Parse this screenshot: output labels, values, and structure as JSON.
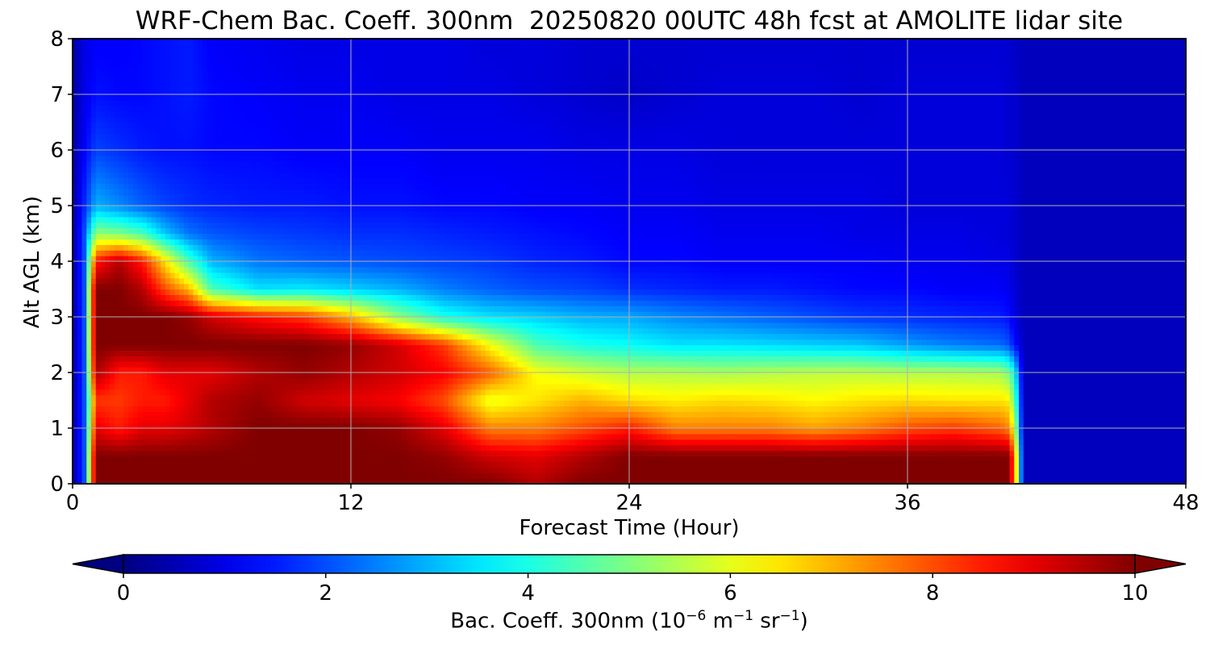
{
  "chart_data": {
    "type": "heatmap",
    "title": "WRF-Chem Bac. Coeff. 300nm  20250820 00UTC 48h fcst at AMOLITE lidar site",
    "xlabel": "Forecast Time (Hour)",
    "ylabel": "Alt AGL (km)",
    "xlim": [
      0,
      48
    ],
    "ylim": [
      0,
      8
    ],
    "xticks": [
      "0",
      "12",
      "24",
      "36",
      "48"
    ],
    "yticks": [
      "0",
      "1",
      "2",
      "3",
      "4",
      "5",
      "6",
      "7",
      "8"
    ],
    "grid": true,
    "colormap": "jet",
    "colorbar": {
      "label": "Bac. Coeff. 300nm  (10-6 m-1 sr-1)",
      "label_parts": {
        "base": "Bac. Coeff. 300nm  (10",
        "exp1": "−6",
        "mid": " m",
        "exp2": "−1",
        "mid2": " sr",
        "exp3": "−1",
        "end": ")"
      },
      "min": 0,
      "max": 10,
      "ticks": [
        "0",
        "2",
        "4",
        "6",
        "8",
        "10"
      ],
      "extend": "both",
      "orientation": "horizontal"
    },
    "x": [
      0,
      0.5,
      1,
      2,
      3,
      4,
      5,
      6,
      8,
      10,
      12,
      14,
      16,
      18,
      20,
      22,
      24,
      26,
      28,
      30,
      32,
      34,
      36,
      38,
      40,
      40.3,
      40.6,
      41,
      44,
      48
    ],
    "y": [
      0,
      0.5,
      1,
      1.5,
      2,
      2.5,
      3,
      3.5,
      4,
      4.5,
      5,
      6,
      7,
      8
    ],
    "z": [
      [
        0.3,
        2,
        10,
        10,
        10,
        10,
        10,
        10,
        10,
        10,
        10,
        10,
        10,
        10,
        9.5,
        10,
        10,
        10,
        10,
        10,
        10,
        10,
        10,
        10,
        10,
        10,
        8,
        0.6,
        0.6,
        0.6
      ],
      [
        0.3,
        2,
        10,
        10,
        10,
        10,
        10,
        10,
        10,
        10,
        10,
        10,
        9.8,
        9.2,
        9,
        9.5,
        10,
        10,
        10,
        10,
        10,
        10,
        10,
        10,
        10,
        10,
        8,
        0.6,
        0.6,
        0.6
      ],
      [
        0.3,
        2,
        9,
        8.5,
        9,
        9,
        9.2,
        9.5,
        10,
        10,
        10,
        9.8,
        9,
        7.5,
        7.5,
        8,
        8.5,
        7.5,
        7.5,
        7.5,
        7.2,
        7.5,
        8,
        8.2,
        7.8,
        7.5,
        6.2,
        0.6,
        0.6,
        0.6
      ],
      [
        0.3,
        2,
        8.2,
        8.2,
        8.5,
        8.5,
        9,
        9.5,
        9.8,
        9.2,
        9,
        8.8,
        8,
        6,
        6.5,
        7,
        6.6,
        6.4,
        6.6,
        6.5,
        6.3,
        6.5,
        6.6,
        6.5,
        6.5,
        6.4,
        5,
        0.6,
        0.6,
        0.6
      ],
      [
        0.3,
        2,
        9.6,
        8.5,
        8.5,
        9,
        9,
        9,
        9.5,
        9.8,
        9.5,
        9.2,
        8.8,
        7.8,
        6.2,
        5.8,
        5.5,
        5.5,
        5.4,
        5.5,
        5.6,
        5.6,
        5.5,
        5.5,
        5.4,
        5,
        4,
        0.6,
        0.6,
        0.6
      ],
      [
        0.3,
        2,
        10,
        10,
        10,
        10,
        10,
        10,
        10,
        10,
        9.8,
        9.2,
        8.2,
        6.2,
        4.5,
        4,
        3.8,
        3.5,
        3.5,
        3.4,
        3.3,
        3.2,
        2.8,
        2.5,
        2.3,
        2.1,
        1.5,
        0.6,
        0.6,
        0.6
      ],
      [
        0.3,
        2,
        10,
        10,
        10,
        10,
        9.8,
        9.2,
        8.6,
        8.2,
        7,
        5.2,
        4,
        3.5,
        3.3,
        3,
        2.9,
        2.6,
        2.4,
        2.2,
        2,
        1.8,
        1.7,
        1.6,
        1.5,
        1.4,
        1,
        0.6,
        0.6,
        0.6
      ],
      [
        0.3,
        2,
        10,
        10,
        9.5,
        8,
        7,
        4.5,
        3.5,
        3.6,
        3.3,
        3,
        2.5,
        2.2,
        2,
        1.9,
        1.7,
        1.6,
        1.5,
        1.5,
        1.4,
        1.3,
        1.3,
        1.2,
        1.2,
        1.1,
        0.9,
        0.6,
        0.6,
        0.6
      ],
      [
        0.3,
        2,
        8.5,
        9.5,
        8.5,
        6.5,
        4.5,
        3,
        2.4,
        2.2,
        2.1,
        2,
        1.9,
        1.8,
        1.6,
        1.5,
        1.3,
        1.3,
        1.2,
        1.2,
        1.2,
        1.2,
        1.1,
        1.1,
        1,
        1,
        0.8,
        0.6,
        0.6,
        0.6
      ],
      [
        0.3,
        2,
        5.2,
        5,
        4.5,
        3.2,
        2.4,
        2.1,
        1.9,
        1.8,
        1.7,
        1.7,
        1.6,
        1.5,
        1.4,
        1.3,
        1.2,
        1.2,
        1.1,
        1.1,
        1.1,
        1,
        1,
        1,
        0.9,
        0.9,
        0.8,
        0.6,
        0.6,
        0.6
      ],
      [
        0.3,
        1.6,
        3,
        2.6,
        2.2,
        1.9,
        1.7,
        1.6,
        1.5,
        1.5,
        1.4,
        1.4,
        1.3,
        1.3,
        1.2,
        1.2,
        1.1,
        1.1,
        1,
        1,
        1,
        1,
        0.9,
        0.9,
        0.9,
        0.9,
        0.8,
        0.6,
        0.6,
        0.6
      ],
      [
        0.3,
        1.2,
        1.9,
        1.7,
        1.5,
        1.4,
        1.4,
        1.3,
        1.3,
        1.2,
        1.2,
        1.2,
        1.1,
        1.1,
        1.1,
        1,
        1,
        1,
        0.9,
        0.9,
        0.9,
        0.9,
        0.9,
        0.9,
        0.9,
        0.8,
        0.8,
        0.6,
        0.6,
        0.6
      ],
      [
        0.3,
        1,
        1.4,
        1.3,
        1.3,
        1.4,
        1.5,
        1.3,
        1.2,
        1.1,
        1.1,
        1,
        1,
        1,
        0.9,
        0.8,
        0.7,
        0.8,
        0.9,
        0.9,
        0.9,
        0.8,
        0.9,
        0.9,
        0.9,
        0.8,
        0.8,
        0.6,
        0.6,
        0.6
      ],
      [
        0.3,
        1,
        1.2,
        1.2,
        1.3,
        1.4,
        1.5,
        1.2,
        1.1,
        1,
        1,
        1,
        1,
        0.9,
        0.9,
        0.8,
        0.8,
        0.8,
        0.8,
        0.8,
        0.8,
        0.8,
        0.8,
        0.8,
        0.8,
        0.8,
        0.7,
        0.6,
        0.6,
        0.6
      ]
    ]
  }
}
